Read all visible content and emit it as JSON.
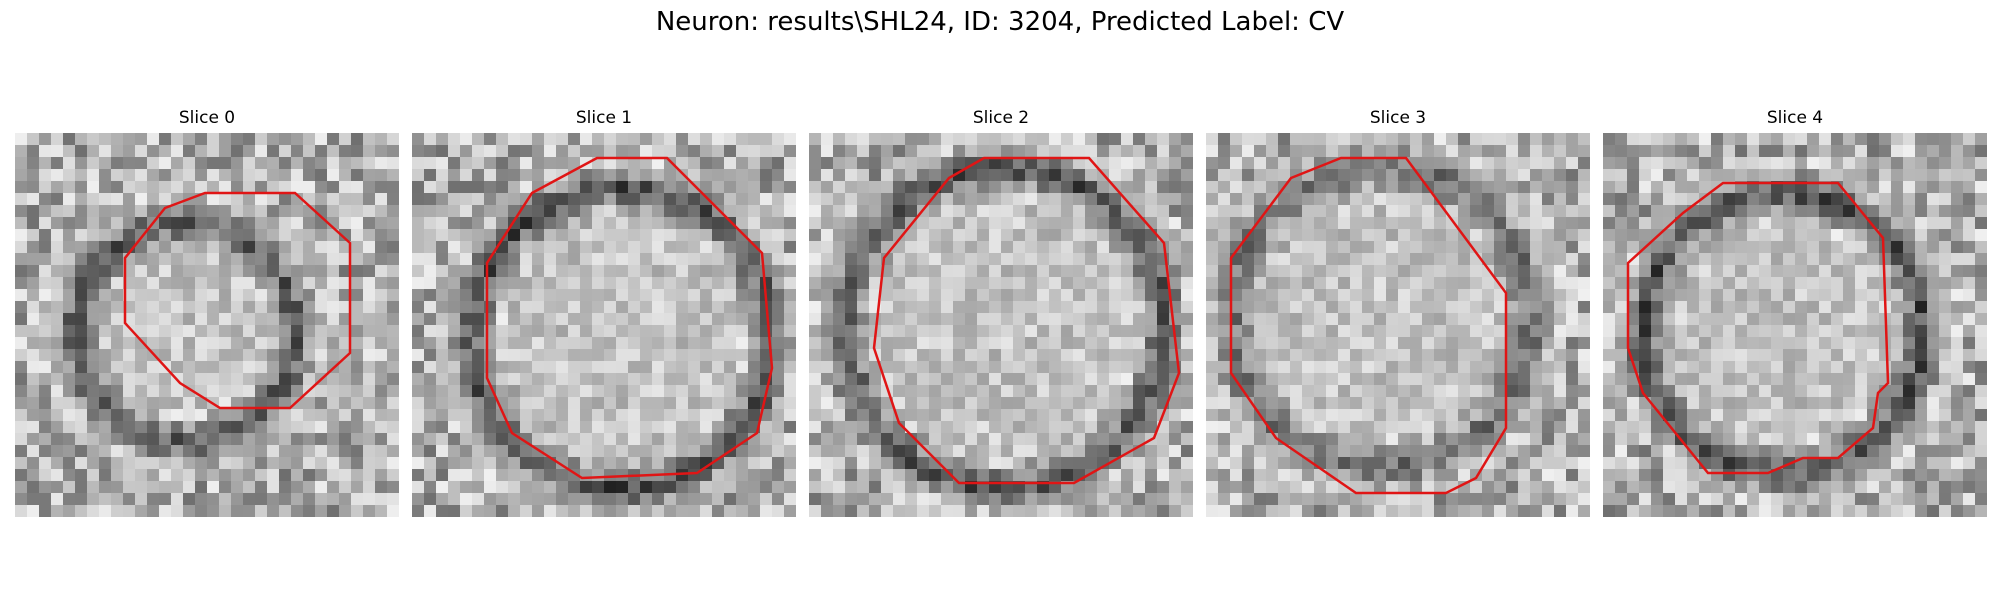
{
  "figure": {
    "title": "Neuron: results\\SHL24, ID: 3204, Predicted Label: CV"
  },
  "colors": {
    "contour": "#e01515",
    "background": "#ffffff"
  },
  "slices": [
    {
      "title": "Slice 0"
    },
    {
      "title": "Slice 1"
    },
    {
      "title": "Slice 2"
    },
    {
      "title": "Slice 3"
    },
    {
      "title": "Slice 4"
    }
  ]
}
